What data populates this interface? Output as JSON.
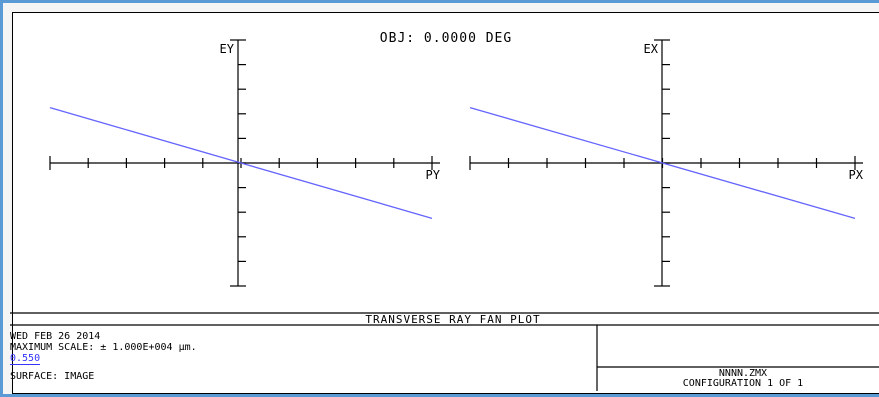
{
  "plot": {
    "header": "OBJ: 0.0000 DEG",
    "footer_title": "TRANSVERSE RAY FAN PLOT",
    "ray_color": "#6464ff"
  },
  "charts": [
    {
      "type": "line",
      "y_axis_label": "EY",
      "x_axis_label": "PY",
      "xlim": [
        -1,
        1
      ],
      "ylim": [
        -1,
        1
      ],
      "series": [
        {
          "x": [
            -1,
            1
          ],
          "y": [
            0.45,
            -0.45
          ]
        }
      ]
    },
    {
      "type": "line",
      "y_axis_label": "EX",
      "x_axis_label": "PX",
      "xlim": [
        -1,
        1
      ],
      "ylim": [
        -1,
        1
      ],
      "series": [
        {
          "x": [
            -1,
            1
          ],
          "y": [
            0.45,
            -0.45
          ]
        }
      ]
    }
  ],
  "info": {
    "date": "WED FEB 26 2014",
    "max_scale": "MAXIMUM SCALE: ± 1.000E+004 µm.",
    "wavelength": "0.550",
    "surface": "SURFACE: IMAGE",
    "file": "NNNN.ZMX",
    "configuration": "CONFIGURATION 1 OF 1"
  }
}
